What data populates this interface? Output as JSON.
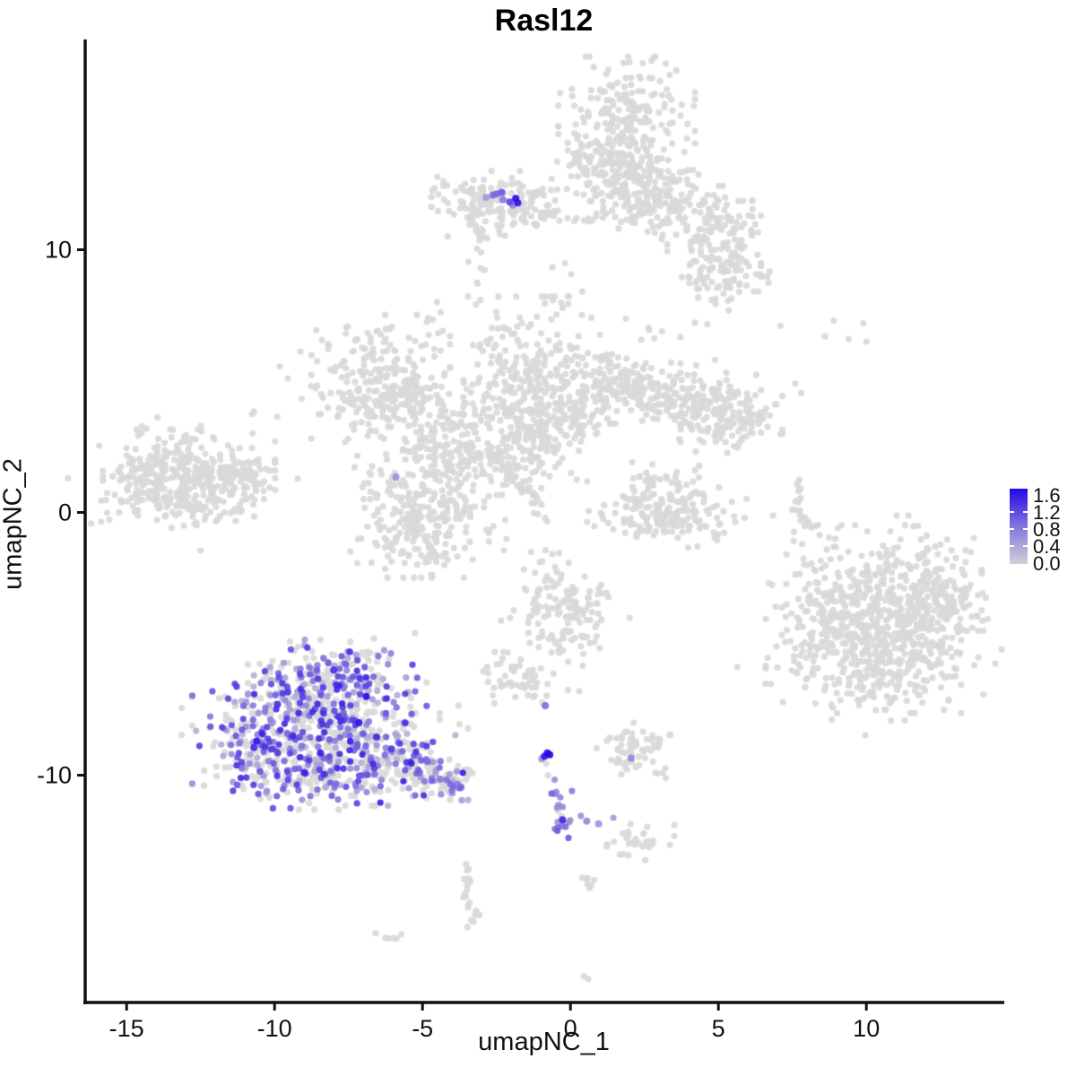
{
  "title": "Rasl12",
  "axes": {
    "x": {
      "label": "umapNC_1",
      "ticks": [
        -15,
        -10,
        -5,
        0,
        5,
        10
      ]
    },
    "y": {
      "label": "umapNC_2",
      "ticks": [
        -10,
        0,
        10
      ]
    }
  },
  "legend": {
    "ticks": [
      1.6,
      1.2,
      0.8,
      0.4,
      0.0
    ],
    "low_color": "#d3d3d3",
    "high_color": "#2408e8",
    "max": 1.6,
    "position": "right"
  },
  "chart_data": {
    "type": "scatter",
    "title": "Rasl12",
    "xlabel": "umapNC_1",
    "ylabel": "umapNC_2",
    "xlim": [
      -16.4,
      14.6
    ],
    "ylim": [
      -18.65,
      17.9
    ],
    "grid": false,
    "point_grey_color": "#d9d9d9",
    "color_scale": {
      "low": "#d3d3d3",
      "high": "#2408e8",
      "domain": [
        0,
        1.6
      ]
    },
    "clusters": [
      {
        "name": "top-center",
        "expr_frac": 0,
        "levels": [
          0,
          0
        ],
        "blobs": [
          [
            1.9,
            14.6,
            1.05,
            1.25,
            260
          ],
          [
            1.2,
            13.0,
            0.75,
            0.8,
            90
          ],
          [
            2.6,
            12.6,
            0.7,
            0.7,
            70
          ],
          [
            3.6,
            11.7,
            0.6,
            0.6,
            55
          ],
          [
            4.5,
            11.0,
            0.75,
            0.65,
            70
          ],
          [
            5.3,
            10.1,
            0.65,
            0.8,
            70
          ],
          [
            4.9,
            8.9,
            0.7,
            0.55,
            50
          ],
          [
            5.7,
            9.4,
            0.45,
            0.45,
            25
          ],
          [
            2.2,
            11.6,
            0.5,
            0.5,
            30
          ]
        ],
        "paths": [
          {
            "pts": [
              [
                -0.4,
                9.6
              ],
              [
                0.2,
                8.9
              ],
              [
                0.0,
                8.3
              ]
            ],
            "n": 6,
            "jitter": 0.2
          },
          {
            "pts": [
              [
                1.2,
                7.4
              ],
              [
                2.2,
                7.0
              ],
              [
                3.3,
                6.6
              ],
              [
                4.4,
                7.0
              ]
            ],
            "n": 10,
            "jitter": 0.35
          }
        ]
      },
      {
        "name": "top-left-small",
        "expr_frac": 0,
        "levels": [
          0,
          0
        ],
        "blobs": [
          [
            -2.5,
            11.9,
            1.0,
            0.5,
            95
          ],
          [
            -3.05,
            11.25,
            0.5,
            0.45,
            28
          ],
          [
            -1.55,
            11.5,
            0.6,
            0.45,
            40
          ]
        ],
        "paths": [
          {
            "pts": [
              [
                -2.95,
                10.8
              ],
              [
                -3.15,
                9.8
              ],
              [
                -3.0,
                8.9
              ],
              [
                -3.25,
                8.1
              ]
            ],
            "n": 12,
            "jitter": 0.16
          },
          {
            "pts": [
              [
                -1.0,
                11.3
              ],
              [
                0.2,
                11.15
              ],
              [
                0.95,
                11.25
              ]
            ],
            "n": 14,
            "jitter": 0.12
          }
        ]
      },
      {
        "name": "left",
        "expr_frac": 0,
        "levels": [
          0,
          0
        ],
        "blobs": [
          [
            -13.6,
            1.5,
            1.0,
            0.75,
            120
          ],
          [
            -12.4,
            1.2,
            1.1,
            0.85,
            150
          ],
          [
            -11.3,
            1.45,
            0.6,
            0.5,
            45
          ],
          [
            -13.0,
            0.55,
            1.3,
            0.5,
            60
          ],
          [
            -14.3,
            0.95,
            0.5,
            0.5,
            25
          ],
          [
            -12.8,
            1.3,
            1.9,
            1.25,
            50
          ]
        ]
      },
      {
        "name": "central",
        "expr_frac": 0,
        "levels": [
          0,
          0
        ],
        "blobs": [
          [
            -6.6,
            5.1,
            1.15,
            1.1,
            200
          ],
          [
            -5.3,
            4.1,
            0.9,
            0.7,
            90
          ],
          [
            -4.8,
            0.6,
            1.2,
            1.4,
            230
          ],
          [
            -5.6,
            -0.6,
            0.7,
            0.6,
            60
          ],
          [
            -4.4,
            -1.3,
            0.5,
            0.5,
            30
          ],
          [
            -3.9,
            2.2,
            0.8,
            0.9,
            90
          ],
          [
            -1.2,
            4.7,
            1.1,
            1.6,
            280
          ],
          [
            -2.4,
            3.6,
            0.9,
            0.8,
            90
          ],
          [
            0.3,
            4.2,
            0.7,
            0.9,
            80
          ],
          [
            1.5,
            4.7,
            0.9,
            0.6,
            90
          ],
          [
            2.9,
            4.6,
            0.9,
            0.55,
            90
          ],
          [
            4.2,
            4.0,
            0.8,
            0.6,
            80
          ],
          [
            5.4,
            3.7,
            0.8,
            0.7,
            90
          ],
          [
            6.0,
            3.5,
            0.5,
            0.5,
            30
          ],
          [
            -0.9,
            2.2,
            0.6,
            0.7,
            50
          ],
          [
            -8.6,
            4.3,
            0.9,
            0.6,
            9
          ]
        ],
        "paths": [
          {
            "pts": [
              [
                -2.75,
                2.3
              ],
              [
                -1.15,
                0.45
              ]
            ],
            "n": 42,
            "jitter": 0.12
          },
          {
            "pts": [
              [
                -4.6,
                7.9
              ],
              [
                -4.75,
                6.9
              ],
              [
                -4.4,
                6.1
              ]
            ],
            "n": 8,
            "jitter": 0.16
          },
          {
            "pts": [
              [
                -1.1,
                0.3
              ],
              [
                -0.9,
                -0.5
              ]
            ],
            "n": 5,
            "jitter": 0.15
          }
        ]
      },
      {
        "name": "mid-right-crescent",
        "expr_frac": 0,
        "levels": [
          0,
          0
        ],
        "blobs": [
          [
            3.2,
            -0.3,
            1.25,
            0.45,
            110
          ],
          [
            2.5,
            0.7,
            0.5,
            0.55,
            40
          ],
          [
            3.9,
            0.5,
            0.45,
            0.5,
            30
          ],
          [
            3.2,
            0.3,
            1.0,
            0.8,
            25
          ]
        ]
      },
      {
        "name": "right-streak",
        "expr_frac": 0,
        "levels": [
          0,
          0
        ],
        "paths": [
          {
            "pts": [
              [
                7.8,
                1.2
              ],
              [
                7.6,
                0.4
              ],
              [
                7.85,
                -0.3
              ],
              [
                8.35,
                -0.6
              ]
            ],
            "n": 26,
            "jitter": 0.07
          }
        ]
      },
      {
        "name": "top-right-sparse",
        "expr_frac": 0,
        "levels": [
          0,
          0
        ],
        "singles": [
          [
            7.1,
            7.1
          ],
          [
            8.6,
            6.7
          ],
          [
            9.4,
            6.6
          ],
          [
            9.9,
            7.2
          ],
          [
            10.0,
            6.5
          ],
          [
            8.9,
            7.3
          ],
          [
            7.6,
            4.9
          ],
          [
            7.8,
            4.55
          ]
        ]
      },
      {
        "name": "bottom-right",
        "expr_frac": 0,
        "levels": [
          0,
          0
        ],
        "blobs": [
          [
            10.6,
            -2.9,
            1.5,
            1.1,
            260
          ],
          [
            9.9,
            -5.0,
            1.5,
            1.2,
            260
          ],
          [
            11.9,
            -4.6,
            1.0,
            1.0,
            130
          ],
          [
            12.6,
            -3.2,
            0.6,
            0.8,
            60
          ],
          [
            8.3,
            -4.1,
            0.55,
            0.7,
            50
          ],
          [
            10.8,
            -6.6,
            0.9,
            0.6,
            60
          ],
          [
            10.7,
            -4.3,
            2.3,
            1.9,
            70
          ]
        ],
        "singles": [
          [
            8.0,
            -2.0
          ],
          [
            7.7,
            -3.3
          ],
          [
            8.9,
            -1.3
          ]
        ]
      },
      {
        "name": "bottom-left-expressing",
        "expr_frac": 0.48,
        "levels": [
          0.25,
          1.4
        ],
        "blobs": [
          [
            -8.7,
            -6.6,
            1.0,
            0.8,
            120
          ],
          [
            -9.7,
            -8.4,
            1.4,
            1.3,
            240
          ],
          [
            -7.5,
            -8.2,
            1.2,
            1.1,
            220
          ],
          [
            -6.4,
            -9.4,
            0.9,
            0.8,
            110
          ],
          [
            -10.5,
            -9.4,
            0.65,
            0.7,
            70
          ],
          [
            -8.6,
            -10.1,
            0.9,
            0.55,
            70
          ],
          [
            -7.0,
            -5.9,
            0.55,
            0.5,
            40
          ],
          [
            -8.3,
            -8.2,
            2.2,
            1.9,
            60
          ]
        ]
      },
      {
        "name": "bottom-left-tail",
        "expr_frac": 0.22,
        "levels": [
          0.3,
          0.9
        ],
        "blobs": [
          [
            -5.3,
            -9.7,
            0.55,
            0.45,
            45
          ],
          [
            -4.5,
            -10.1,
            0.5,
            0.4,
            40
          ],
          [
            -3.8,
            -10.35,
            0.4,
            0.35,
            30
          ]
        ]
      },
      {
        "name": "mid-center-small",
        "expr_frac": 0,
        "levels": [
          0,
          0
        ],
        "blobs": [
          [
            -0.5,
            -3.2,
            0.7,
            0.8,
            60
          ],
          [
            -0.1,
            -4.6,
            0.6,
            0.7,
            50
          ],
          [
            0.3,
            -3.4,
            0.4,
            0.4,
            20
          ],
          [
            -0.2,
            -3.9,
            1.0,
            1.3,
            20
          ]
        ]
      },
      {
        "name": "small-left-blob",
        "expr_frac": 0,
        "levels": [
          0,
          0
        ],
        "blobs": [
          [
            -1.9,
            -6.3,
            0.6,
            0.45,
            40
          ],
          [
            -1.2,
            -6.6,
            0.3,
            0.3,
            12
          ]
        ],
        "singles": [
          [
            0.3,
            -6.8
          ]
        ]
      },
      {
        "name": "bottom-center-branch",
        "expr_frac": 0.5,
        "levels": [
          0.4,
          0.9
        ],
        "paths": [
          {
            "pts": [
              [
                -0.6,
                -10.35
              ],
              [
                -0.45,
                -10.9
              ],
              [
                -0.3,
                -11.4
              ],
              [
                -0.33,
                -11.85
              ]
            ],
            "n": 10,
            "jitter": 0.1
          }
        ],
        "singles": [
          [
            -0.82,
            -9.56
          ],
          [
            -0.76,
            -10.0
          ],
          [
            0.05,
            -10.6
          ],
          [
            0.35,
            -11.55
          ],
          [
            1.45,
            -11.62
          ]
        ]
      },
      {
        "name": "bottom-center-endblob",
        "expr_frac": 0.85,
        "levels": [
          0.5,
          1.1
        ],
        "blobs": [
          [
            -0.35,
            -11.95,
            0.28,
            0.28,
            9
          ]
        ]
      },
      {
        "name": "bottom-center-greys",
        "expr_frac": 0,
        "levels": [
          0,
          0
        ],
        "blobs": [
          [
            2.3,
            -8.9,
            0.7,
            0.55,
            55
          ],
          [
            1.75,
            -9.4,
            0.3,
            0.3,
            12
          ],
          [
            2.3,
            -12.5,
            0.55,
            0.35,
            30
          ]
        ]
      },
      {
        "name": "bottom-chains",
        "expr_frac": 0,
        "levels": [
          0,
          0
        ],
        "paths": [
          {
            "pts": [
              [
                -3.55,
                -13.4
              ],
              [
                -3.45,
                -13.9
              ],
              [
                -3.6,
                -14.4
              ],
              [
                -3.4,
                -14.9
              ],
              [
                -3.15,
                -15.3
              ],
              [
                -3.35,
                -15.65
              ]
            ],
            "n": 22,
            "jitter": 0.09
          }
        ],
        "blobs": [
          [
            -6.1,
            -16.1,
            0.22,
            0.15,
            6
          ],
          [
            0.55,
            -14.0,
            0.2,
            0.25,
            7
          ]
        ],
        "singles": [
          [
            0.45,
            -17.65
          ],
          [
            0.6,
            -17.75
          ]
        ]
      }
    ],
    "highlight_points": [
      [
        -2.85,
        12.0,
        0.45
      ],
      [
        -2.62,
        12.08,
        0.8
      ],
      [
        -2.5,
        12.12,
        0.85
      ],
      [
        -2.32,
        12.18,
        0.95
      ],
      [
        -2.28,
        11.9,
        0.7
      ],
      [
        -2.05,
        11.82,
        1.1
      ],
      [
        -1.85,
        11.95,
        1.55
      ],
      [
        -1.78,
        11.78,
        1.5
      ],
      [
        -1.95,
        11.7,
        0.6
      ],
      [
        -5.9,
        1.35,
        0.5
      ],
      [
        -0.85,
        -7.35,
        0.8
      ],
      [
        -0.78,
        -9.15,
        1.6
      ],
      [
        -0.7,
        -9.22,
        1.6
      ],
      [
        -0.88,
        -9.28,
        1.5
      ],
      [
        -0.97,
        -9.38,
        0.45
      ],
      [
        -0.52,
        -10.7,
        0.6
      ],
      [
        -0.4,
        -11.15,
        0.55
      ],
      [
        0.55,
        -11.75,
        0.55
      ],
      [
        0.95,
        -11.85,
        0.5
      ],
      [
        -0.27,
        -11.7,
        1.3
      ],
      [
        2.05,
        -9.35,
        0.6
      ],
      [
        -10.6,
        -8.7,
        1.5
      ],
      [
        -10.7,
        -8.95,
        1.35
      ],
      [
        -6.9,
        -7.0,
        1.6
      ],
      [
        -8.0,
        -6.0,
        1.3
      ],
      [
        -7.15,
        -8.0,
        1.5
      ],
      [
        -9.0,
        -9.9,
        1.4
      ],
      [
        -8.45,
        -9.15,
        1.45
      ],
      [
        -6.05,
        -9.0,
        1.2
      ],
      [
        -9.9,
        -7.3,
        1.3
      ],
      [
        -6.55,
        -8.55,
        1.35
      ],
      [
        -5.6,
        -8.0,
        0.9
      ],
      [
        -5.1,
        -9.9,
        0.8
      ],
      [
        -4.4,
        -10.15,
        0.7
      ],
      [
        -3.7,
        -10.45,
        0.75
      ]
    ]
  }
}
